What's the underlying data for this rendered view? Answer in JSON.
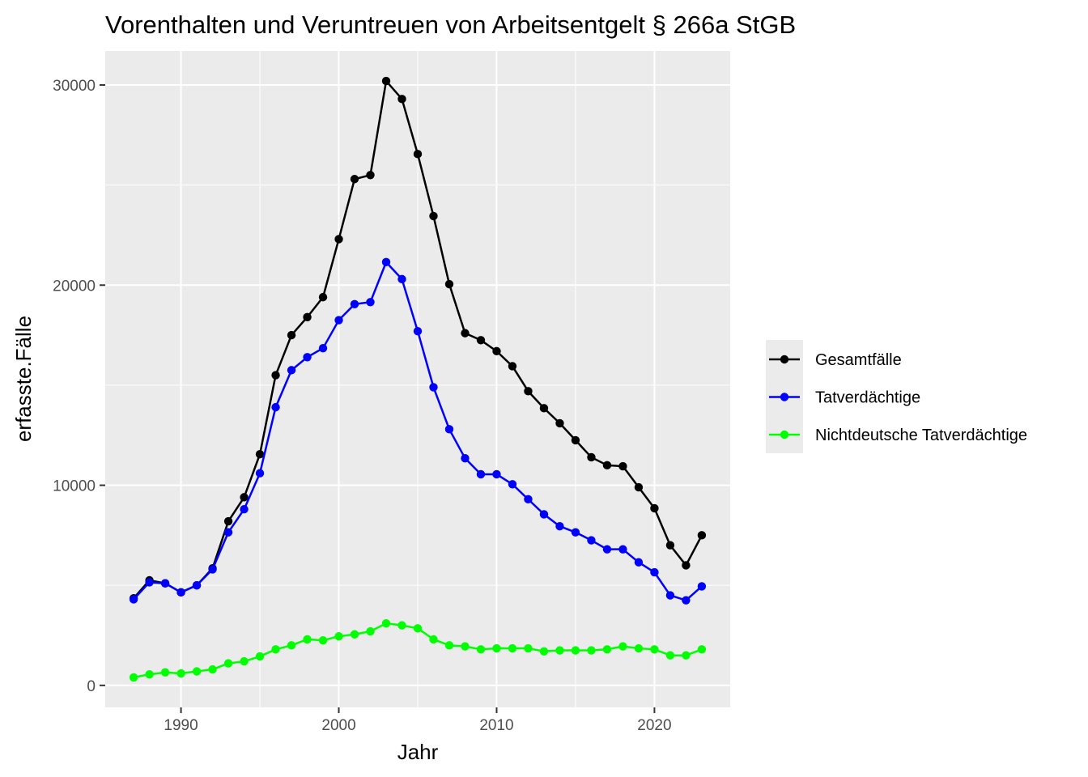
{
  "chart_data": {
    "type": "line",
    "title": "Vorenthalten und Veruntreuen von Arbeitsentgelt § 266a StGB",
    "xlabel": "Jahr",
    "ylabel": "erfasste.Fälle",
    "xlim": [
      1985.2,
      2024.8
    ],
    "ylim": [
      -1100,
      31700
    ],
    "x_ticks": [
      1990,
      2000,
      2010,
      2020
    ],
    "x_tick_labels": [
      "1990",
      "2000",
      "2010",
      "2020"
    ],
    "y_ticks": [
      0,
      10000,
      20000,
      30000
    ],
    "y_tick_labels": [
      "0",
      "10000",
      "20000",
      "30000"
    ],
    "grid": true,
    "legend_position": "right",
    "x": [
      1987,
      1988,
      1989,
      1990,
      1991,
      1992,
      1993,
      1994,
      1995,
      1996,
      1997,
      1998,
      1999,
      2000,
      2001,
      2002,
      2003,
      2004,
      2005,
      2006,
      2007,
      2008,
      2009,
      2010,
      2011,
      2012,
      2013,
      2014,
      2015,
      2016,
      2017,
      2018,
      2019,
      2020,
      2021,
      2022,
      2023
    ],
    "series": [
      {
        "name": "Gesamtfälle",
        "color": "#000000",
        "values": [
          4350,
          5250,
          5100,
          4650,
          5000,
          5850,
          8200,
          9400,
          11550,
          15500,
          17500,
          18400,
          19400,
          22300,
          25300,
          25500,
          30200,
          29300,
          26550,
          23450,
          20050,
          17600,
          17250,
          16700,
          15950,
          14700,
          13850,
          13100,
          12250,
          11400,
          11000,
          10950,
          9900,
          8850,
          7000,
          6000,
          7500
        ]
      },
      {
        "name": "Tatverdächtige",
        "color": "#0000ff",
        "values": [
          4300,
          5150,
          5100,
          4650,
          5000,
          5800,
          7650,
          8800,
          10600,
          13900,
          15750,
          16400,
          16850,
          18250,
          19050,
          19150,
          21150,
          20300,
          17700,
          14900,
          12800,
          11350,
          10550,
          10550,
          10050,
          9300,
          8550,
          7950,
          7650,
          7250,
          6800,
          6800,
          6150,
          5650,
          4500,
          4250,
          4950
        ]
      },
      {
        "name": "Nichtdeutsche Tatverdächtige",
        "color": "#00ff00",
        "values": [
          400,
          550,
          650,
          600,
          700,
          800,
          1100,
          1200,
          1450,
          1800,
          2000,
          2300,
          2250,
          2450,
          2550,
          2700,
          3100,
          3000,
          2850,
          2300,
          2000,
          1950,
          1800,
          1850,
          1850,
          1850,
          1700,
          1750,
          1750,
          1750,
          1800,
          1950,
          1850,
          1800,
          1500,
          1500,
          1800
        ]
      }
    ]
  }
}
